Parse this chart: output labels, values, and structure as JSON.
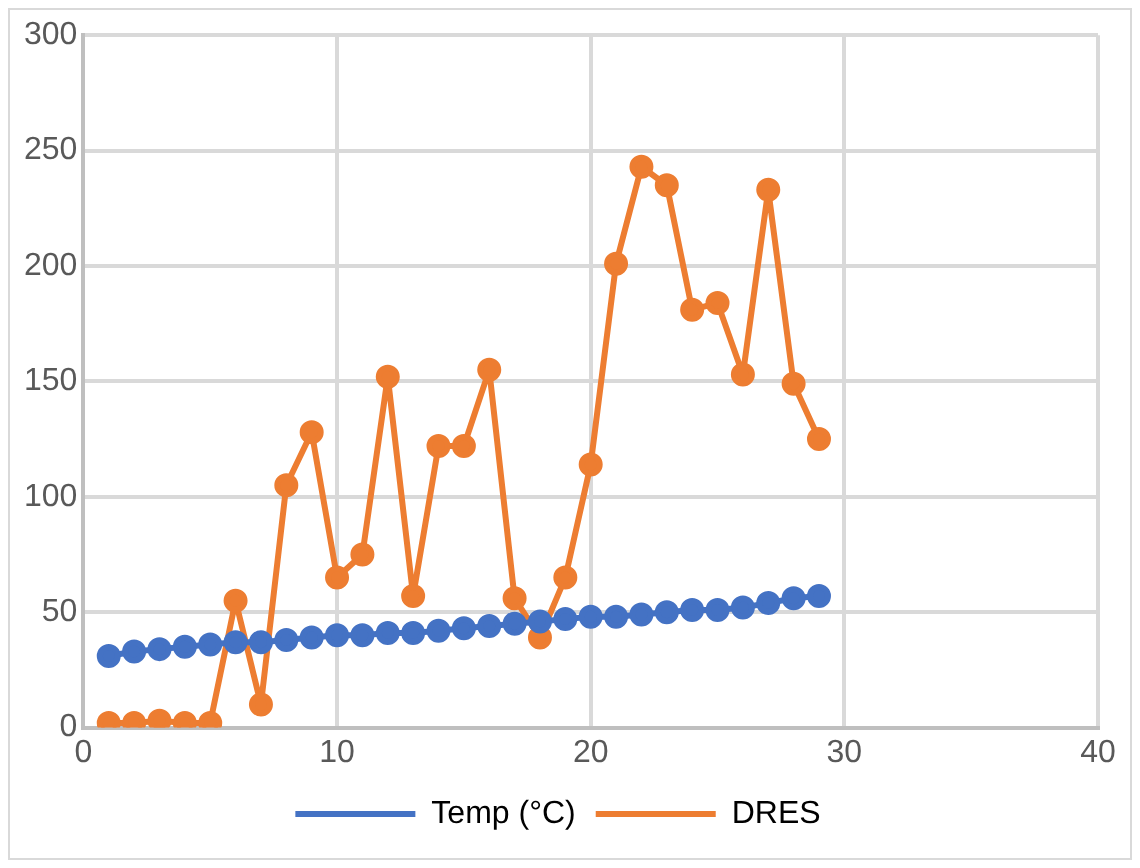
{
  "chart_data": {
    "type": "line",
    "x": [
      1,
      2,
      3,
      4,
      5,
      6,
      7,
      8,
      9,
      10,
      11,
      12,
      13,
      14,
      15,
      16,
      17,
      18,
      19,
      20,
      21,
      22,
      23,
      24,
      25,
      26,
      27,
      28,
      29
    ],
    "series": [
      {
        "name": "Temp (°C)",
        "color": "#4472c4",
        "values": [
          31,
          33,
          34,
          35,
          36,
          37,
          37,
          38,
          39,
          40,
          40,
          41,
          41,
          42,
          43,
          44,
          45,
          46,
          47,
          48,
          48,
          49,
          50,
          51,
          51,
          52,
          54,
          56,
          57
        ]
      },
      {
        "name": "DRES",
        "color": "#ed7d31",
        "values": [
          2,
          2,
          3,
          2,
          2,
          55,
          10,
          105,
          128,
          65,
          75,
          152,
          57,
          122,
          122,
          155,
          56,
          39,
          65,
          114,
          201,
          243,
          235,
          181,
          184,
          153,
          233,
          149,
          125
        ]
      }
    ],
    "xlim": [
      0,
      40
    ],
    "xticks": [
      0,
      10,
      20,
      30,
      40
    ],
    "ylim": [
      0,
      300
    ],
    "yticks": [
      0,
      50,
      100,
      150,
      200,
      250,
      300
    ],
    "grid": true,
    "legend": "bottom",
    "marker": "circle",
    "line_style": "solid"
  }
}
